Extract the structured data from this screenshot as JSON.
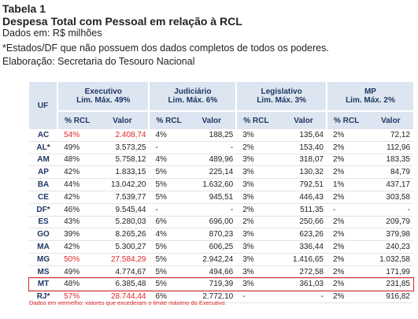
{
  "header": {
    "table_label": "Tabela 1",
    "title": "Despesa Total com Pessoal em relação à RCL",
    "units": "Dados em: R$ milhões",
    "note": "*Estados/DF que não  possuem dos dados completos de todos os poderes.",
    "source": "Elaboração: Secretaria do Tesouro Nacional"
  },
  "table": {
    "uf_header": "UF",
    "groups": [
      {
        "name": "Executivo",
        "limit": "Lim. Máx. 49%"
      },
      {
        "name": "Judiciário",
        "limit": "Lim. Máx. 6%"
      },
      {
        "name": "Legislativo",
        "limit": "Lim. Máx. 3%"
      },
      {
        "name": "MP",
        "limit": "Lim. Máx. 2%"
      }
    ],
    "subheaders": [
      "% RCL",
      "Valor",
      "% RCL",
      "Valor",
      "% RCL",
      "Valor",
      "% RCL",
      "Valor"
    ],
    "rows": [
      {
        "uf": "AC",
        "cells": [
          "54%",
          "2.408,74",
          "4%",
          "188,25",
          "3%",
          "135,64",
          "2%",
          "72,12"
        ],
        "color": "#e0262b"
      },
      {
        "uf": "AL*",
        "cells": [
          "49%",
          "3.573,25",
          "-",
          "-",
          "2%",
          "153,40",
          "2%",
          "112,96"
        ]
      },
      {
        "uf": "AM",
        "cells": [
          "48%",
          "5.758,12",
          "4%",
          "489,96",
          "3%",
          "318,07",
          "2%",
          "183,35"
        ]
      },
      {
        "uf": "AP",
        "cells": [
          "42%",
          "1.833,15",
          "5%",
          "225,14",
          "3%",
          "130,32",
          "2%",
          "84,79"
        ]
      },
      {
        "uf": "BA",
        "cells": [
          "44%",
          "13.042,20",
          "5%",
          "1.632,60",
          "3%",
          "792,51",
          "1%",
          "437,17"
        ]
      },
      {
        "uf": "CE",
        "cells": [
          "42%",
          "7.539,77",
          "5%",
          "945,51",
          "3%",
          "446,43",
          "2%",
          "303,58"
        ]
      },
      {
        "uf": "DF*",
        "cells": [
          "46%",
          "9.545,44",
          "-",
          "-",
          "2%",
          "511,35",
          "-",
          "-"
        ]
      },
      {
        "uf": "ES",
        "cells": [
          "43%",
          "5.280,03",
          "6%",
          "696,00",
          "2%",
          "250,66",
          "2%",
          "209,79"
        ]
      },
      {
        "uf": "GO",
        "cells": [
          "39%",
          "8.265,26",
          "4%",
          "870,23",
          "3%",
          "623,26",
          "2%",
          "379,98"
        ]
      },
      {
        "uf": "MA",
        "cells": [
          "42%",
          "5.300,27",
          "5%",
          "606,25",
          "3%",
          "336,44",
          "2%",
          "240,23"
        ]
      },
      {
        "uf": "MG",
        "cells": [
          "50%",
          "27.584,29",
          "5%",
          "2.942,24",
          "3%",
          "1.416,65",
          "2%",
          "1.032,58"
        ],
        "color": "#e0262b"
      },
      {
        "uf": "MS",
        "cells": [
          "49%",
          "4.774,67",
          "5%",
          "494,66",
          "3%",
          "272,58",
          "2%",
          "171,99"
        ]
      },
      {
        "uf": "MT",
        "cells": [
          "48%",
          "6.385,48",
          "5%",
          "719,39",
          "3%",
          "361,03",
          "2%",
          "231,85"
        ],
        "outline": "#d9262b"
      },
      {
        "uf": "RJ*",
        "cells": [
          "57%",
          "28.744,44",
          "6%",
          "2.772,10",
          "-",
          "-",
          "2%",
          "916,82"
        ],
        "color": "#e0262b"
      }
    ],
    "footnote": "Dados em vermelho: valores que excederam o limite máximo do Executivo."
  }
}
